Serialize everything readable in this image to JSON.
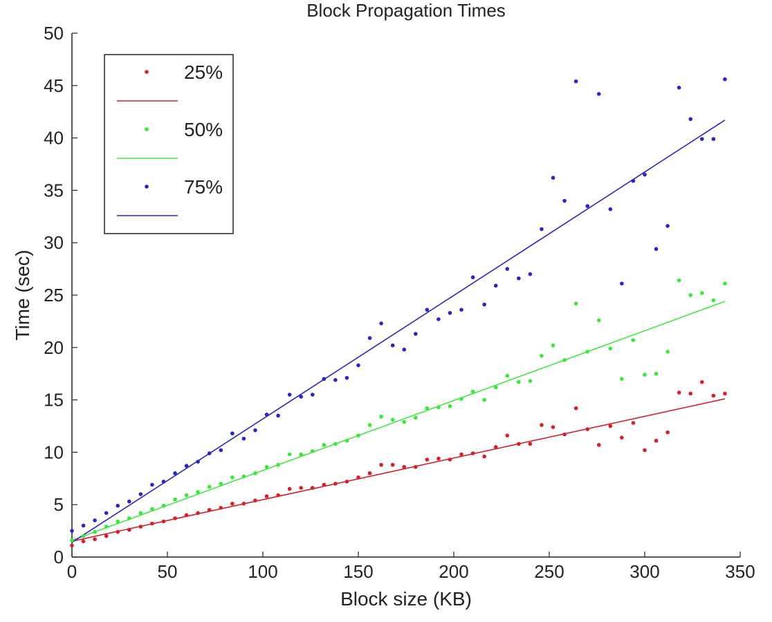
{
  "chart_data": {
    "type": "scatter",
    "title": "Block Propagation Times",
    "xlabel": "Block size (KB)",
    "ylabel": "Time (sec)",
    "xlim": [
      0,
      350
    ],
    "ylim": [
      0,
      50
    ],
    "xticks": [
      0,
      50,
      100,
      150,
      200,
      250,
      300,
      350
    ],
    "yticks": [
      0,
      5,
      10,
      15,
      20,
      25,
      30,
      35,
      40,
      45,
      50
    ],
    "grid": false,
    "legend_position": "top-left",
    "series": [
      {
        "name": "25%",
        "color": "#d81e2a",
        "points": [
          [
            0,
            1.1
          ],
          [
            6,
            1.5
          ],
          [
            12,
            1.7
          ],
          [
            18,
            2.0
          ],
          [
            24,
            2.4
          ],
          [
            30,
            2.6
          ],
          [
            36,
            2.9
          ],
          [
            42,
            3.2
          ],
          [
            48,
            3.4
          ],
          [
            54,
            3.7
          ],
          [
            60,
            4.0
          ],
          [
            66,
            4.2
          ],
          [
            72,
            4.5
          ],
          [
            78,
            4.7
          ],
          [
            84,
            5.1
          ],
          [
            90,
            5.1
          ],
          [
            96,
            5.4
          ],
          [
            102,
            5.8
          ],
          [
            108,
            5.9
          ],
          [
            114,
            6.5
          ],
          [
            120,
            6.6
          ],
          [
            126,
            6.6
          ],
          [
            132,
            6.9
          ],
          [
            138,
            7.0
          ],
          [
            144,
            7.2
          ],
          [
            150,
            7.6
          ],
          [
            156,
            8.0
          ],
          [
            162,
            8.8
          ],
          [
            168,
            8.8
          ],
          [
            174,
            8.6
          ],
          [
            180,
            8.6
          ],
          [
            186,
            9.3
          ],
          [
            192,
            9.4
          ],
          [
            198,
            9.3
          ],
          [
            204,
            9.8
          ],
          [
            210,
            9.9
          ],
          [
            216,
            9.6
          ],
          [
            222,
            10.5
          ],
          [
            228,
            11.6
          ],
          [
            234,
            10.8
          ],
          [
            240,
            10.8
          ],
          [
            246,
            12.6
          ],
          [
            252,
            12.4
          ],
          [
            258,
            11.7
          ],
          [
            264,
            14.2
          ],
          [
            270,
            12.2
          ],
          [
            276,
            10.7
          ],
          [
            282,
            12.5
          ],
          [
            288,
            11.4
          ],
          [
            294,
            12.8
          ],
          [
            300,
            10.2
          ],
          [
            306,
            11.1
          ],
          [
            312,
            11.9
          ],
          [
            318,
            15.7
          ],
          [
            324,
            15.6
          ],
          [
            330,
            16.7
          ],
          [
            336,
            15.4
          ],
          [
            342,
            15.6
          ]
        ],
        "fit": [
          [
            0,
            1.5
          ],
          [
            342,
            15.1
          ]
        ]
      },
      {
        "name": "50%",
        "color": "#38e93a",
        "points": [
          [
            0,
            1.6
          ],
          [
            6,
            2.0
          ],
          [
            12,
            2.4
          ],
          [
            18,
            2.9
          ],
          [
            24,
            3.4
          ],
          [
            30,
            3.7
          ],
          [
            36,
            4.2
          ],
          [
            42,
            4.6
          ],
          [
            48,
            4.9
          ],
          [
            54,
            5.5
          ],
          [
            60,
            5.9
          ],
          [
            66,
            6.2
          ],
          [
            72,
            6.7
          ],
          [
            78,
            7.0
          ],
          [
            84,
            7.6
          ],
          [
            90,
            7.7
          ],
          [
            96,
            8.0
          ],
          [
            102,
            8.6
          ],
          [
            108,
            8.8
          ],
          [
            114,
            9.8
          ],
          [
            120,
            9.8
          ],
          [
            126,
            10.1
          ],
          [
            132,
            10.7
          ],
          [
            138,
            10.8
          ],
          [
            144,
            11.1
          ],
          [
            150,
            11.6
          ],
          [
            156,
            12.6
          ],
          [
            162,
            13.4
          ],
          [
            168,
            13.1
          ],
          [
            174,
            12.9
          ],
          [
            180,
            13.3
          ],
          [
            186,
            14.2
          ],
          [
            192,
            14.3
          ],
          [
            198,
            14.4
          ],
          [
            204,
            15.1
          ],
          [
            210,
            15.8
          ],
          [
            216,
            15.0
          ],
          [
            222,
            16.2
          ],
          [
            228,
            17.3
          ],
          [
            234,
            16.7
          ],
          [
            240,
            16.8
          ],
          [
            246,
            19.2
          ],
          [
            252,
            20.2
          ],
          [
            258,
            18.8
          ],
          [
            264,
            24.2
          ],
          [
            270,
            19.6
          ],
          [
            276,
            22.6
          ],
          [
            282,
            19.9
          ],
          [
            288,
            17.0
          ],
          [
            294,
            20.7
          ],
          [
            300,
            17.4
          ],
          [
            306,
            17.5
          ],
          [
            312,
            19.6
          ],
          [
            318,
            26.4
          ],
          [
            324,
            25.0
          ],
          [
            330,
            25.2
          ],
          [
            336,
            24.5
          ],
          [
            342,
            26.1
          ]
        ],
        "fit": [
          [
            0,
            1.6
          ],
          [
            342,
            24.4
          ]
        ]
      },
      {
        "name": "75%",
        "color": "#2a25c9",
        "points": [
          [
            0,
            2.5
          ],
          [
            6,
            3.0
          ],
          [
            12,
            3.5
          ],
          [
            18,
            4.2
          ],
          [
            24,
            4.9
          ],
          [
            30,
            5.3
          ],
          [
            36,
            6.0
          ],
          [
            42,
            6.9
          ],
          [
            48,
            7.2
          ],
          [
            54,
            8.0
          ],
          [
            60,
            8.7
          ],
          [
            66,
            9.1
          ],
          [
            72,
            9.9
          ],
          [
            78,
            10.2
          ],
          [
            84,
            11.8
          ],
          [
            90,
            11.3
          ],
          [
            96,
            12.1
          ],
          [
            102,
            13.6
          ],
          [
            108,
            13.5
          ],
          [
            114,
            15.5
          ],
          [
            120,
            15.3
          ],
          [
            126,
            15.5
          ],
          [
            132,
            17.0
          ],
          [
            138,
            16.9
          ],
          [
            144,
            17.1
          ],
          [
            150,
            18.3
          ],
          [
            156,
            20.9
          ],
          [
            162,
            22.3
          ],
          [
            168,
            20.2
          ],
          [
            174,
            19.8
          ],
          [
            180,
            21.3
          ],
          [
            186,
            23.6
          ],
          [
            192,
            22.7
          ],
          [
            198,
            23.3
          ],
          [
            204,
            23.6
          ],
          [
            210,
            26.7
          ],
          [
            216,
            24.1
          ],
          [
            222,
            25.9
          ],
          [
            228,
            27.5
          ],
          [
            234,
            26.6
          ],
          [
            240,
            27.0
          ],
          [
            246,
            31.3
          ],
          [
            252,
            36.2
          ],
          [
            258,
            34.0
          ],
          [
            264,
            45.4
          ],
          [
            270,
            33.5
          ],
          [
            276,
            44.2
          ],
          [
            282,
            33.2
          ],
          [
            288,
            26.1
          ],
          [
            294,
            35.9
          ],
          [
            300,
            36.5
          ],
          [
            306,
            29.4
          ],
          [
            312,
            31.6
          ],
          [
            318,
            44.8
          ],
          [
            324,
            41.8
          ],
          [
            330,
            39.9
          ],
          [
            336,
            39.9
          ],
          [
            342,
            45.6
          ]
        ],
        "fit": [
          [
            0,
            1.4
          ],
          [
            342,
            41.7
          ]
        ]
      }
    ]
  }
}
